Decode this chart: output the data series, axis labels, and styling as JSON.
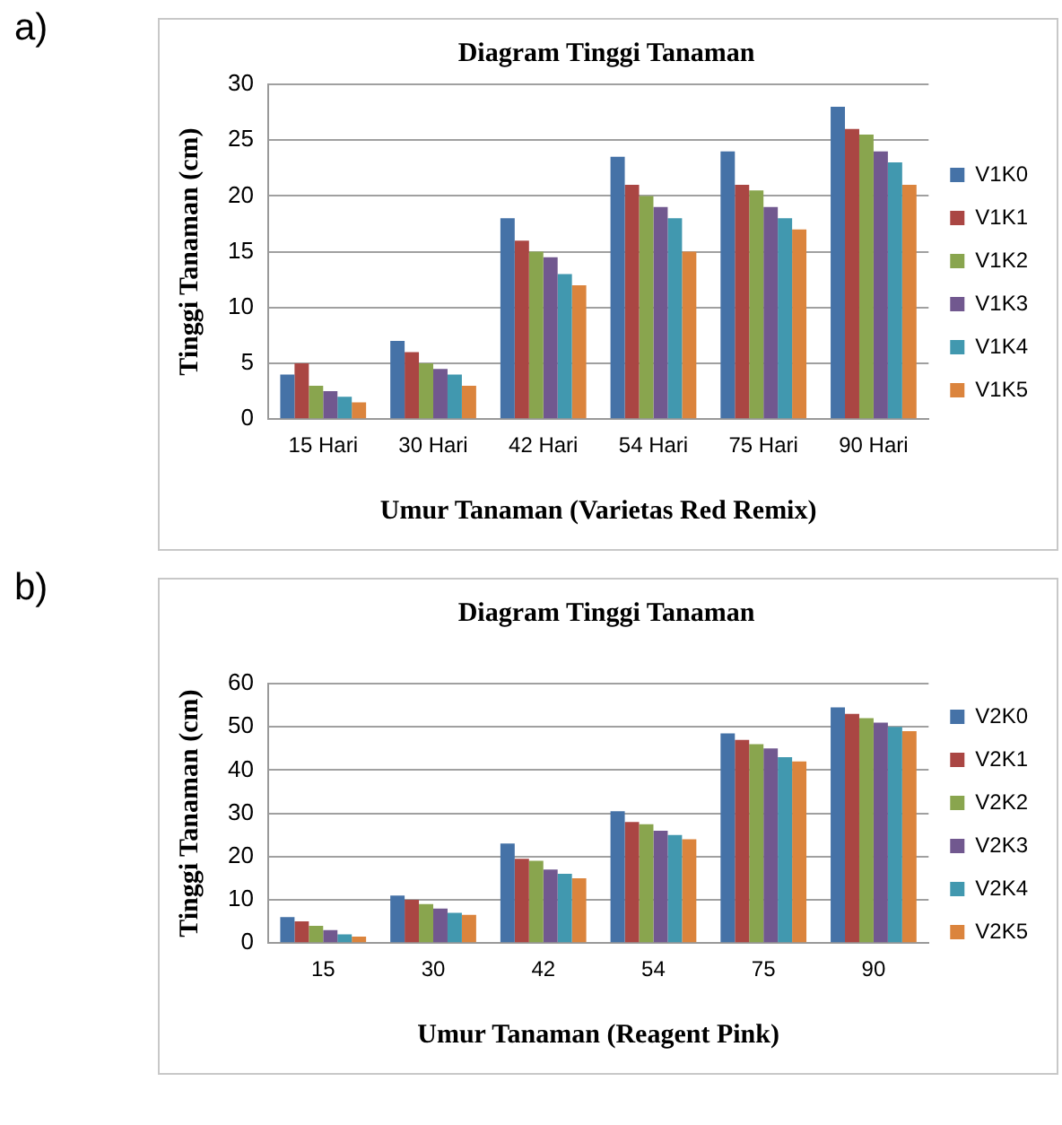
{
  "chart_data": [
    {
      "type": "bar",
      "title": "Diagram Tinggi Tanaman",
      "xlabel": "Umur Tanaman (Varietas Red Remix)",
      "ylabel": "Tinggi Tanaman (cm)",
      "annotations": [
        "a)"
      ],
      "categories": [
        "15 Hari",
        "30 Hari",
        "42 Hari",
        "54 Hari",
        "75 Hari",
        "90 Hari"
      ],
      "series": [
        {
          "name": "V1K0",
          "color": "#4572a7",
          "values": [
            4,
            7,
            18,
            23.5,
            24,
            28
          ]
        },
        {
          "name": "V1K1",
          "color": "#aa4643",
          "values": [
            5,
            6,
            16,
            21,
            21,
            26
          ]
        },
        {
          "name": "V1K2",
          "color": "#89a54e",
          "values": [
            3,
            5,
            15,
            20,
            20.5,
            25.5
          ]
        },
        {
          "name": "V1K3",
          "color": "#71588f",
          "values": [
            2.5,
            4.5,
            14.5,
            19,
            19,
            24
          ]
        },
        {
          "name": "V1K4",
          "color": "#4198af",
          "values": [
            2,
            4,
            13,
            18,
            18,
            23
          ]
        },
        {
          "name": "V1K5",
          "color": "#db843d",
          "values": [
            1.5,
            3,
            12,
            15,
            17,
            21
          ]
        }
      ],
      "ylim": [
        0,
        30
      ],
      "yticks": [
        0,
        5,
        10,
        15,
        20,
        25,
        30
      ],
      "grid": "y",
      "legend": "right"
    },
    {
      "type": "bar",
      "title": "Diagram Tinggi Tanaman",
      "xlabel": "Umur Tanaman (Reagent Pink)",
      "ylabel": "Tinggi Tanaman (cm)",
      "annotations": [
        "b)"
      ],
      "categories": [
        "15",
        "30",
        "42",
        "54",
        "75",
        "90"
      ],
      "series": [
        {
          "name": "V2K0",
          "color": "#4572a7",
          "values": [
            6,
            11,
            23,
            30.5,
            48.5,
            54.5
          ]
        },
        {
          "name": "V2K1",
          "color": "#aa4643",
          "values": [
            5,
            10,
            19.5,
            28,
            47,
            53
          ]
        },
        {
          "name": "V2K2",
          "color": "#89a54e",
          "values": [
            4,
            9,
            19,
            27.5,
            46,
            52
          ]
        },
        {
          "name": "V2K3",
          "color": "#71588f",
          "values": [
            3,
            8,
            17,
            26,
            45,
            51
          ]
        },
        {
          "name": "V2K4",
          "color": "#4198af",
          "values": [
            2,
            7,
            16,
            25,
            43,
            50
          ]
        },
        {
          "name": "V2K5",
          "color": "#db843d",
          "values": [
            1.5,
            6.5,
            15,
            24,
            42,
            49
          ]
        }
      ],
      "ylim": [
        0,
        60
      ],
      "yticks": [
        0,
        10,
        20,
        30,
        40,
        50,
        60
      ],
      "grid": "y",
      "legend": "right"
    }
  ]
}
